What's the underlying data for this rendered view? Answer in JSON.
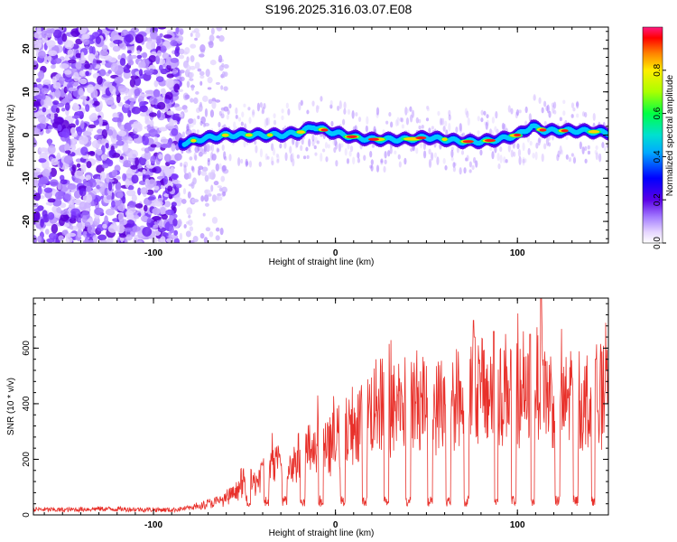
{
  "title": "S196.2025.316.03.07.E08",
  "chart_data": [
    {
      "type": "heatmap",
      "xlabel": "Height of straight line (km)",
      "ylabel": "Frequency (Hz)",
      "xlim": [
        -166,
        150
      ],
      "ylim": [
        -25,
        25
      ],
      "x_ticks": [
        -100,
        0,
        100
      ],
      "y_ticks": [
        -20,
        -10,
        0,
        10,
        20
      ],
      "colorbar": {
        "label": "Normalized spectral amplitude",
        "range": [
          0,
          1
        ],
        "ticks": [
          "0.0",
          "0.2",
          "0.4",
          "0.6",
          "0.8"
        ]
      },
      "ridge": {
        "description_points_km": [
          -85,
          -75,
          -60,
          -50,
          -40,
          -30,
          -20,
          -12,
          -5,
          0,
          10,
          20,
          30,
          40,
          50,
          60,
          70,
          80,
          90,
          100,
          108,
          115,
          125,
          135,
          150
        ],
        "frequency_hz": [
          -2,
          -1,
          0,
          0,
          0,
          0,
          0.5,
          2,
          1,
          0.5,
          -0.5,
          -1,
          -1,
          -1,
          -0.5,
          -1,
          -1.5,
          -1.5,
          -1,
          0,
          2,
          1,
          1,
          1,
          0.5
        ]
      }
    },
    {
      "type": "line",
      "xlabel": "Height of straight line (km)",
      "ylabel": "SNR (10 * v/v)",
      "xlim": [
        -166,
        150
      ],
      "ylim": [
        0,
        780
      ],
      "x_ticks": [
        -100,
        0,
        100
      ],
      "y_ticks": [
        0,
        200,
        400,
        600
      ],
      "series": [
        {
          "name": "SNR",
          "color": "#e8302a",
          "x": [
            -166,
            -150,
            -130,
            -110,
            -90,
            -80,
            -70,
            -60,
            -55,
            -50,
            -45,
            -40,
            -35,
            -30,
            -25,
            -20,
            -15,
            -10,
            -5,
            0,
            5,
            10,
            15,
            20,
            25,
            30,
            35,
            40,
            45,
            50,
            55,
            60,
            65,
            70,
            75,
            80,
            85,
            90,
            95,
            100,
            105,
            110,
            113,
            116,
            120,
            125,
            130,
            135,
            140,
            145,
            150
          ],
          "y": [
            20,
            18,
            22,
            20,
            18,
            25,
            40,
            55,
            80,
            120,
            110,
            150,
            160,
            190,
            170,
            210,
            230,
            250,
            230,
            270,
            290,
            330,
            360,
            380,
            400,
            360,
            420,
            390,
            420,
            400,
            380,
            430,
            420,
            410,
            470,
            440,
            430,
            420,
            480,
            430,
            410,
            460,
            520,
            440,
            420,
            380,
            450,
            400,
            420,
            430,
            410
          ]
        }
      ]
    }
  ]
}
